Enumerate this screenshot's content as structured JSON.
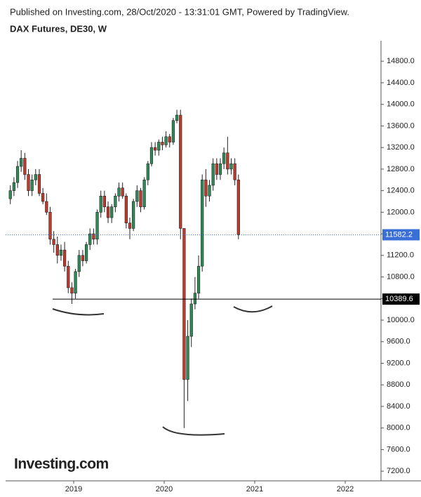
{
  "header": {
    "published": "Published on Investing.com, 28/Oct/2020 - 13:31:01 GMT, Powered by TradingView.",
    "symbol": "DAX Futures, DE30, W"
  },
  "logo": "Investing.com",
  "chart_data": {
    "type": "candlestick",
    "x": [
      2018.3,
      2018.34,
      2018.38,
      2018.42,
      2018.46,
      2018.5,
      2018.54,
      2018.58,
      2018.62,
      2018.66,
      2018.7,
      2018.74,
      2018.78,
      2018.82,
      2018.86,
      2018.9,
      2018.94,
      2018.98,
      2019.02,
      2019.06,
      2019.1,
      2019.14,
      2019.18,
      2019.22,
      2019.26,
      2019.3,
      2019.34,
      2019.38,
      2019.42,
      2019.46,
      2019.5,
      2019.54,
      2019.58,
      2019.62,
      2019.66,
      2019.7,
      2019.74,
      2019.78,
      2019.82,
      2019.86,
      2019.9,
      2019.94,
      2019.98,
      2020.02,
      2020.06,
      2020.1,
      2020.14,
      2020.18,
      2020.22,
      2020.26,
      2020.3,
      2020.34,
      2020.38,
      2020.42,
      2020.46,
      2020.5,
      2020.54,
      2020.58,
      2020.62,
      2020.66,
      2020.7,
      2020.74,
      2020.78,
      2020.82
    ],
    "open": [
      12250,
      12400,
      12550,
      12850,
      13000,
      12700,
      12400,
      12600,
      12700,
      12350,
      12200,
      12000,
      11500,
      11400,
      11200,
      11300,
      11000,
      10600,
      10500,
      10900,
      11200,
      11100,
      11400,
      11600,
      11500,
      12000,
      12300,
      12100,
      11900,
      12100,
      12300,
      12450,
      12300,
      11800,
      11700,
      12200,
      12400,
      12100,
      12600,
      12900,
      13200,
      13150,
      13300,
      13250,
      13400,
      13300,
      13700,
      13800,
      11700,
      8900,
      9700,
      10300,
      10500,
      11000,
      12600,
      12300,
      12500,
      12900,
      12700,
      12900,
      13100,
      12800,
      12900,
      12600
    ],
    "high": [
      12500,
      12650,
      12950,
      13150,
      13100,
      12800,
      12700,
      12800,
      12800,
      12450,
      12350,
      12100,
      11650,
      11550,
      11400,
      11450,
      11100,
      10700,
      10950,
      11300,
      11300,
      11450,
      11700,
      11700,
      12050,
      12400,
      12400,
      12200,
      12150,
      12350,
      12550,
      12550,
      12350,
      11900,
      12250,
      12500,
      12450,
      12650,
      12950,
      13300,
      13300,
      13350,
      13400,
      13500,
      13450,
      13750,
      13900,
      13900,
      11700,
      10000,
      10400,
      10800,
      11200,
      12700,
      12800,
      12600,
      13000,
      13000,
      13000,
      13200,
      13400,
      13000,
      13000,
      12700
    ],
    "low": [
      12150,
      12300,
      12450,
      12750,
      12600,
      12300,
      12300,
      12500,
      12300,
      12150,
      11950,
      11400,
      11250,
      11050,
      11100,
      10900,
      10500,
      10300,
      10400,
      10800,
      11000,
      11050,
      11300,
      11400,
      11400,
      11900,
      12000,
      11800,
      11800,
      12000,
      12200,
      12250,
      11700,
      11500,
      11650,
      12100,
      12000,
      12050,
      12500,
      12850,
      13050,
      13050,
      13150,
      13200,
      13200,
      13250,
      13650,
      11500,
      8000,
      8500,
      9500,
      10200,
      10400,
      10900,
      12100,
      12200,
      12400,
      12600,
      12600,
      12800,
      12700,
      12700,
      12500,
      11500
    ],
    "close": [
      12400,
      12550,
      12850,
      13000,
      12700,
      12400,
      12600,
      12700,
      12350,
      12200,
      12000,
      11500,
      11400,
      11200,
      11300,
      11000,
      10600,
      10500,
      10900,
      11200,
      11100,
      11400,
      11600,
      11500,
      12000,
      12300,
      12100,
      11900,
      12100,
      12300,
      12450,
      12300,
      11800,
      11700,
      12200,
      12400,
      12100,
      12600,
      12900,
      13200,
      13150,
      13300,
      13250,
      13400,
      13300,
      13700,
      13800,
      11700,
      8900,
      9700,
      10300,
      10500,
      11000,
      12600,
      12300,
      12500,
      12900,
      12700,
      12900,
      13100,
      12800,
      12900,
      12600,
      11582.2
    ],
    "up_color": "#2e8b57",
    "down_color": "#c0392b",
    "xlim": [
      2018.248,
      2022.395
    ],
    "xticks": [
      2019,
      2020,
      2021,
      2022
    ],
    "ylim": [
      7020,
      15180
    ],
    "yticks": [
      {
        "value": 7200,
        "label": "7200.0"
      },
      {
        "value": 7600,
        "label": "7600.0"
      },
      {
        "value": 8000,
        "label": "8000.0"
      },
      {
        "value": 8400,
        "label": "8400.0"
      },
      {
        "value": 8800,
        "label": "8800.0"
      },
      {
        "value": 9200,
        "label": "9200.0"
      },
      {
        "value": 9600,
        "label": "9600.0"
      },
      {
        "value": 10000,
        "label": "10000.0"
      },
      {
        "value": 10400,
        "label": "10400.0"
      },
      {
        "value": 10800,
        "label": "10800.0"
      },
      {
        "value": 11200,
        "label": "11200.0"
      },
      {
        "value": 11600,
        "label": "11600.0"
      },
      {
        "value": 12000,
        "label": "12000.0"
      },
      {
        "value": 12400,
        "label": "12400.0"
      },
      {
        "value": 12800,
        "label": "12800.0"
      },
      {
        "value": 13200,
        "label": "13200.0"
      },
      {
        "value": 13600,
        "label": "13600.0"
      },
      {
        "value": 14000,
        "label": "14000.0"
      },
      {
        "value": 14400,
        "label": "14400.0"
      },
      {
        "value": 14800,
        "label": "14800.0"
      }
    ],
    "support_level": 10389.6,
    "last_price": 11582.2,
    "support_color": "#000000",
    "last_price_color": "#3a6fd8"
  }
}
